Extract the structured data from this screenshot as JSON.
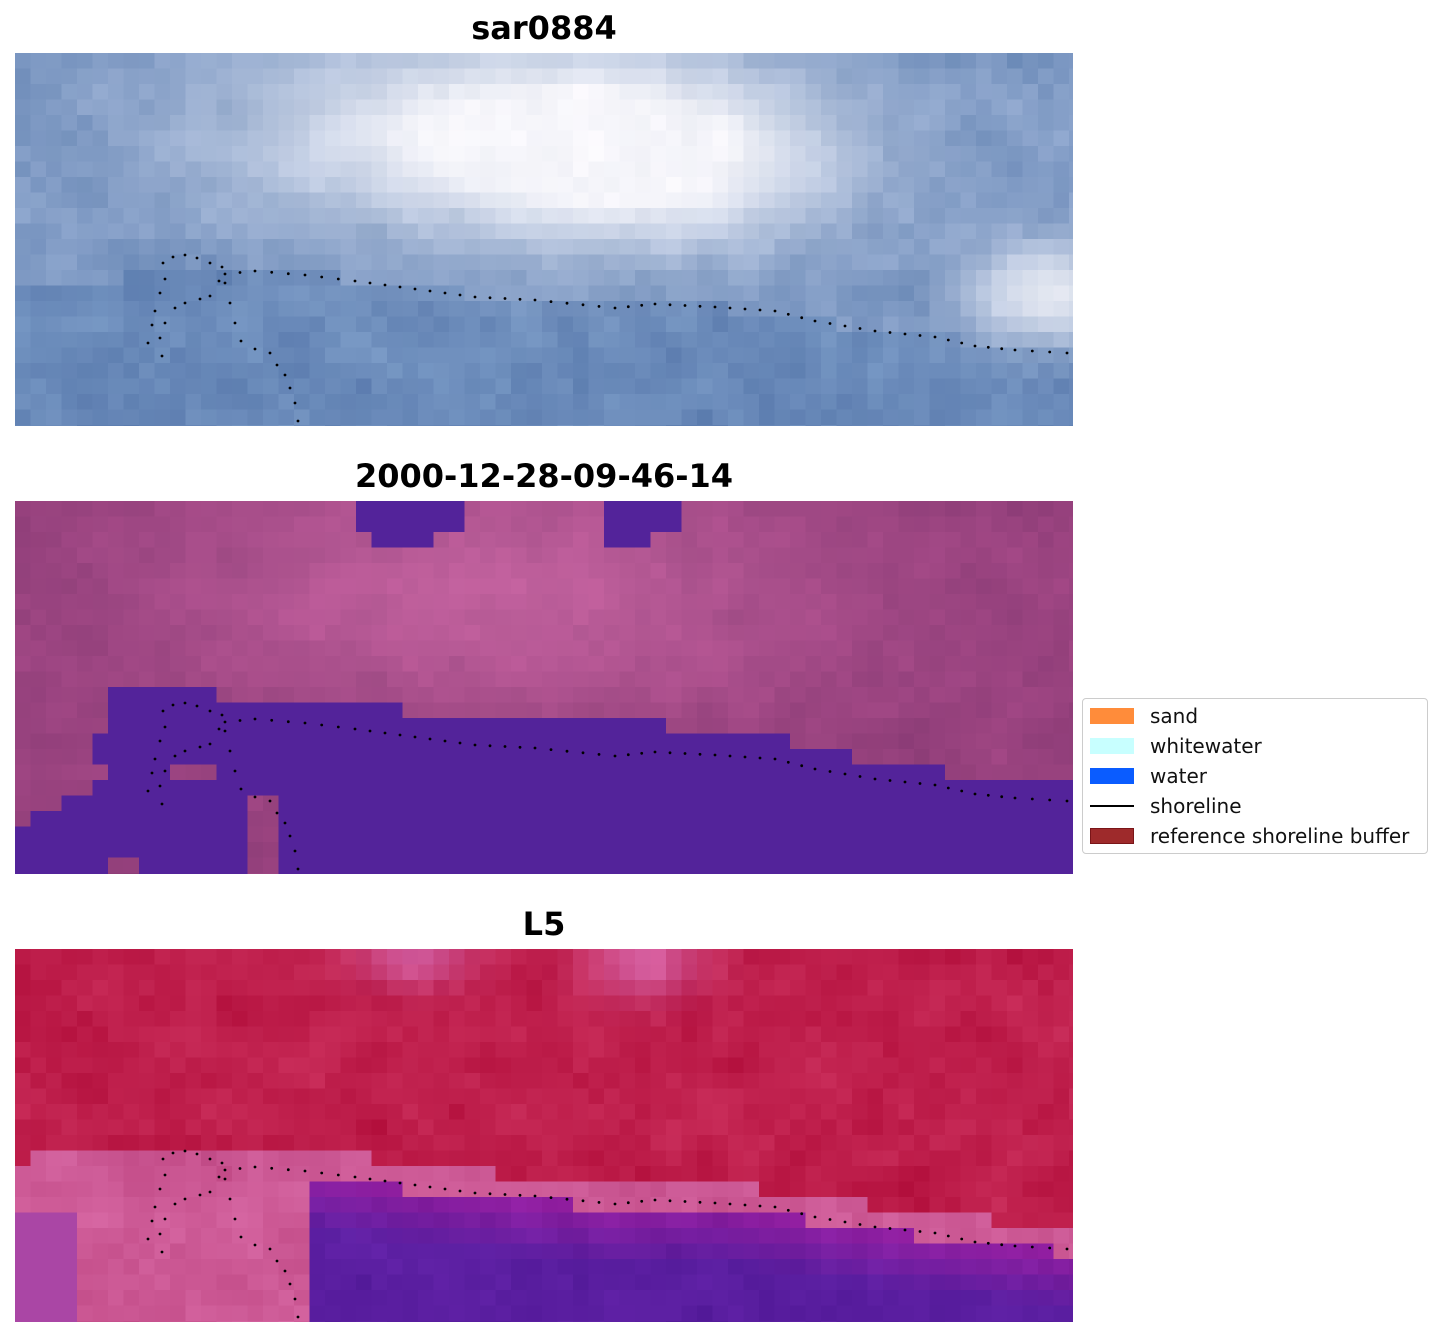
{
  "panels": [
    {
      "title": "sar0884",
      "kind": "rgb"
    },
    {
      "title": "2000-12-28-09-46-14",
      "kind": "classified"
    },
    {
      "title": "L5",
      "kind": "index"
    }
  ],
  "legend": {
    "items": [
      {
        "label": "sand",
        "type": "patch",
        "color": "#ff8c3a"
      },
      {
        "label": "whitewater",
        "type": "patch",
        "color": "#c8ffff"
      },
      {
        "label": "water",
        "type": "patch",
        "color": "#0a5cff"
      },
      {
        "label": "shoreline",
        "type": "line",
        "color": "#000000"
      },
      {
        "label": "reference shoreline buffer",
        "type": "patch",
        "color": "#9e2a2b"
      }
    ]
  },
  "colors": {
    "classified_water": "#53239a",
    "classified_background": "#9c4a86",
    "shoreline_points": "#000000"
  }
}
